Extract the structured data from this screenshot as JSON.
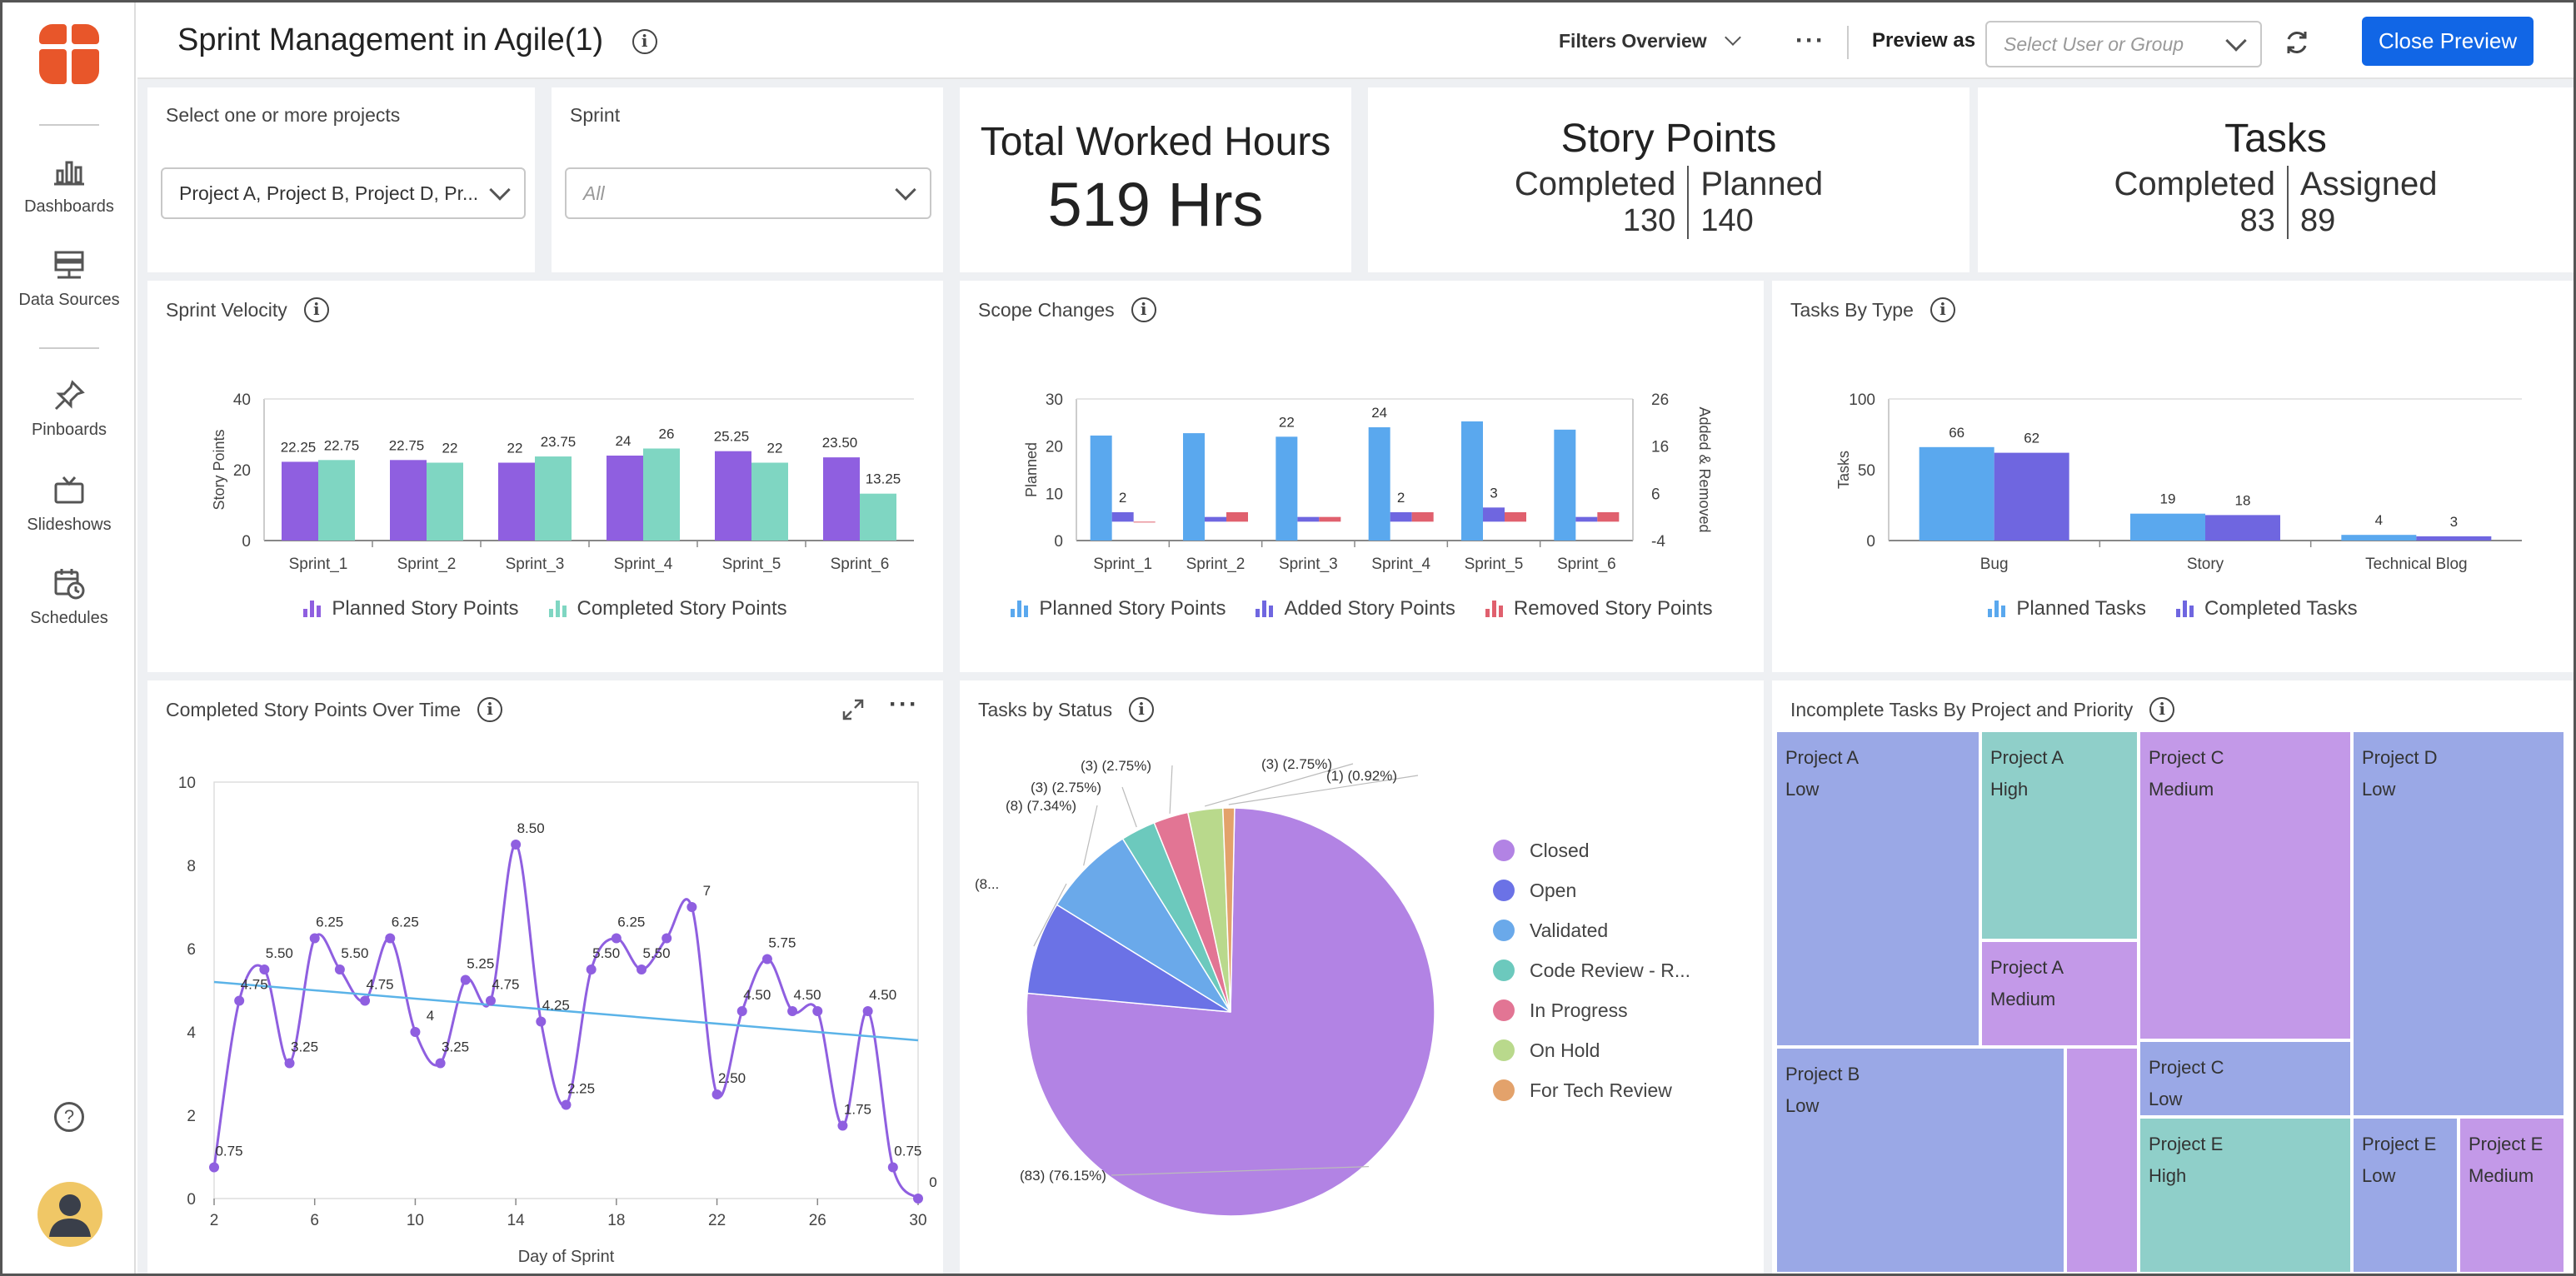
{
  "sidebar": {
    "items": [
      {
        "label": "Dashboards",
        "icon": "bar-chart-icon"
      },
      {
        "label": "Data Sources",
        "icon": "database-icon"
      },
      {
        "label": "Pinboards",
        "icon": "pin-icon"
      },
      {
        "label": "Slideshows",
        "icon": "slideshow-icon"
      },
      {
        "label": "Schedules",
        "icon": "calendar-clock-icon"
      }
    ],
    "help_icon": "help-icon",
    "avatar_icon": "user-avatar-icon"
  },
  "header": {
    "title": "Sprint Management in Agile(1)",
    "filters_label": "Filters Overview",
    "preview_as_label": "Preview as",
    "preview_placeholder": "Select User or Group",
    "close_preview_label": "Close Preview"
  },
  "filters": {
    "project_label": "Select one or more projects",
    "project_value": "Project A, Project B, Project D, Pr...",
    "sprint_label": "Sprint",
    "sprint_value": "All"
  },
  "kpis": {
    "hours": {
      "title": "Total Worked Hours",
      "value": "519 Hrs"
    },
    "story_points": {
      "title": "Story Points",
      "left_label": "Completed",
      "left_value": "130",
      "right_label": "Planned",
      "right_value": "140"
    },
    "tasks": {
      "title": "Tasks",
      "left_label": "Completed",
      "left_value": "83",
      "right_label": "Assigned",
      "right_value": "89"
    }
  },
  "colors": {
    "purple": "#8f5fe0",
    "teal": "#7fd6c2",
    "blue": "#5aa8ee",
    "indigo": "#6f66e0",
    "red": "#e0606e",
    "accent": "#1166e6",
    "brand": "#e8562a"
  },
  "chart_data": [
    {
      "title": "Sprint Velocity",
      "type": "bar",
      "categories": [
        "Sprint_1",
        "Sprint_2",
        "Sprint_3",
        "Sprint_4",
        "Sprint_5",
        "Sprint_6"
      ],
      "series": [
        {
          "name": "Planned Story Points",
          "values": [
            22.25,
            22.75,
            22,
            24,
            25.25,
            23.5
          ],
          "labels": [
            "22.25",
            "22.75",
            "22",
            "24",
            "25.25",
            "23.50"
          ]
        },
        {
          "name": "Completed Story Points",
          "values": [
            22.75,
            22,
            23.75,
            26,
            22,
            13.25
          ],
          "labels": [
            "22.75",
            "22",
            "23.75",
            "26",
            "22",
            "13.25"
          ]
        }
      ],
      "ylabel": "Story Points",
      "ylim": [
        0,
        40
      ],
      "yticks": [
        "0",
        "20",
        "40"
      ]
    },
    {
      "title": "Scope Changes",
      "type": "bar",
      "categories": [
        "Sprint_1",
        "Sprint_2",
        "Sprint_3",
        "Sprint_4",
        "Sprint_5",
        "Sprint_6"
      ],
      "series": [
        {
          "name": "Planned Story Points",
          "axis": "left",
          "values": [
            22.25,
            22.75,
            22,
            24,
            25.25,
            23.5
          ],
          "labels": [
            "",
            "",
            "22",
            "24",
            "",
            ""
          ]
        },
        {
          "name": "Added Story Points",
          "axis": "right",
          "values": [
            2,
            1,
            1,
            2,
            3,
            1
          ],
          "labels": [
            "2",
            "",
            "",
            "2",
            "3",
            ""
          ]
        },
        {
          "name": "Removed Story Points",
          "axis": "right",
          "values": [
            0,
            2,
            1,
            2,
            2,
            2
          ],
          "labels": [
            "",
            "",
            "",
            "",
            "",
            ""
          ]
        }
      ],
      "ylabel": "Planned",
      "ylim": [
        0,
        30
      ],
      "yticks": [
        "0",
        "10",
        "20",
        "30"
      ],
      "y2label": "Added & Removed",
      "y2lim": [
        -4,
        26
      ],
      "y2ticks": [
        "-4",
        "6",
        "16",
        "26"
      ]
    },
    {
      "title": "Tasks By Type",
      "type": "bar",
      "categories": [
        "Bug",
        "Story",
        "Technical Blog"
      ],
      "series": [
        {
          "name": "Planned Tasks",
          "values": [
            66,
            19,
            4
          ],
          "labels": [
            "66",
            "19",
            "4"
          ]
        },
        {
          "name": "Completed Tasks",
          "values": [
            62,
            18,
            3
          ],
          "labels": [
            "62",
            "18",
            "3"
          ]
        }
      ],
      "ylabel": "Tasks",
      "ylim": [
        0,
        100
      ],
      "yticks": [
        "0",
        "50",
        "100"
      ]
    },
    {
      "title": "Completed Story Points Over Time",
      "type": "line",
      "x": [
        2,
        3,
        4,
        5,
        6,
        7,
        8,
        9,
        10,
        11,
        12,
        13,
        14,
        15,
        16,
        17,
        18,
        19,
        20,
        21,
        22,
        23,
        24,
        25,
        26,
        27,
        28,
        29,
        30
      ],
      "series": [
        {
          "values": [
            0.75,
            4.75,
            5.5,
            3.25,
            6.25,
            5.5,
            4.75,
            6.25,
            4,
            3.25,
            5.25,
            4.75,
            8.5,
            4.25,
            2.25,
            5.5,
            6.25,
            5.5,
            6.25,
            7,
            2.5,
            4.5,
            5.75,
            4.5,
            4.5,
            1.75,
            4.5,
            0.75,
            0
          ],
          "labels": [
            "0.75",
            "4.75",
            "5.50",
            "3.25",
            "6.25",
            "5.50",
            "4.75",
            "6.25",
            "4",
            "3.25",
            "5.25",
            "4.75",
            "8.50",
            "4.25",
            "2.25",
            "5.50",
            "6.25",
            "5.50",
            "",
            "7",
            "2.50",
            "4.50",
            "5.75",
            "4.50",
            "",
            "1.75",
            "4.50",
            "0.75",
            "0"
          ]
        },
        {
          "name": "trend",
          "x": [
            2,
            30
          ],
          "values": [
            5.2,
            3.8
          ]
        }
      ],
      "xlabel": "Day of Sprint",
      "xlim": [
        2,
        30
      ],
      "xticks": [
        "2",
        "6",
        "10",
        "14",
        "18",
        "22",
        "26",
        "30"
      ],
      "ylim": [
        0,
        10
      ],
      "yticks": [
        "0",
        "2",
        "4",
        "6",
        "8",
        "10"
      ]
    },
    {
      "title": "Tasks by Status",
      "type": "pie",
      "categories": [
        "Closed",
        "Open",
        "Validated",
        "Code Review - R...",
        "In Progress",
        "On Hold",
        "For Tech Review"
      ],
      "values": [
        83,
        8,
        8,
        3,
        3,
        3,
        1
      ],
      "labels": [
        "(83) (76.15%)",
        "(8...",
        "(8) (7.34%)",
        "(3) (2.75%)",
        "(3) (2.75%)",
        "(3) (2.75%)",
        "(1) (0.92%)"
      ],
      "colors": [
        "#b283e4",
        "#6b72e6",
        "#6aa9ea",
        "#6cc9bd",
        "#e27594",
        "#b9d98c",
        "#e3a26b"
      ]
    },
    {
      "title": "Incomplete Tasks By Project and Priority",
      "type": "treemap",
      "cells": [
        {
          "project": "Project A",
          "priority": "Low"
        },
        {
          "project": "Project A",
          "priority": "High"
        },
        {
          "project": "Project A",
          "priority": "Medium"
        },
        {
          "project": "Project C",
          "priority": "Medium"
        },
        {
          "project": "Project D",
          "priority": "Low"
        },
        {
          "project": "Project B",
          "priority": "Low"
        },
        {
          "project": "Project C",
          "priority": "Low"
        },
        {
          "project": "Project E",
          "priority": "High"
        },
        {
          "project": "Project E",
          "priority": "Low"
        },
        {
          "project": "Project E",
          "priority": "Medium"
        }
      ]
    }
  ]
}
